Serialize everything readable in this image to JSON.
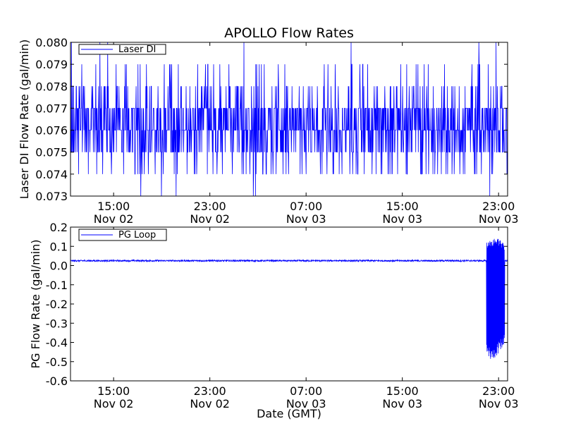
{
  "chart_data": [
    {
      "type": "line",
      "title": "APOLLO Flow Rates",
      "ylabel": "Laser DI Flow Rate (gal/min)",
      "ylim": [
        0.073,
        0.08
      ],
      "yticks": [
        "0.073",
        "0.074",
        "0.075",
        "0.076",
        "0.077",
        "0.078",
        "0.079",
        "0.080"
      ],
      "xticks": [
        {
          "time": "15:00",
          "date": "Nov 02"
        },
        {
          "time": "23:00",
          "date": "Nov 02"
        },
        {
          "time": "07:00",
          "date": "Nov 03"
        },
        {
          "time": "15:00",
          "date": "Nov 03"
        },
        {
          "time": "23:00",
          "date": "Nov 03"
        }
      ],
      "xlim": [
        "2011-11-02 11:25",
        "2011-11-03 23:45"
      ],
      "legend": {
        "position": "top-left"
      },
      "series": [
        {
          "name": "Laser DI",
          "color": "#0000ff",
          "typical_range": [
            0.075,
            0.077
          ],
          "baseline": 0.076,
          "noise_levels": [
            0.073,
            0.074,
            0.075,
            0.076,
            0.077,
            0.078,
            0.079,
            0.08
          ]
        }
      ]
    },
    {
      "type": "line",
      "title": "",
      "ylabel": "PG Flow Rate (gal/min)",
      "xlabel": "Date (GMT)",
      "ylim": [
        -0.6,
        0.2
      ],
      "yticks": [
        "-0.6",
        "-0.5",
        "-0.4",
        "-0.3",
        "-0.2",
        "-0.1",
        "0.0",
        "0.1",
        "0.2"
      ],
      "xticks": [
        {
          "time": "15:00",
          "date": "Nov 02"
        },
        {
          "time": "23:00",
          "date": "Nov 02"
        },
        {
          "time": "07:00",
          "date": "Nov 03"
        },
        {
          "time": "15:00",
          "date": "Nov 03"
        },
        {
          "time": "23:00",
          "date": "Nov 03"
        }
      ],
      "xlim": [
        "2011-11-02 11:25",
        "2011-11-03 23:45"
      ],
      "legend": {
        "position": "top-left"
      },
      "series": [
        {
          "name": "PG Loop",
          "color": "#0000ff",
          "baseline": 0.025,
          "oscillation_start": "2011-11-03 22:00",
          "oscillation_end": "2011-11-03 23:30",
          "oscillation_range": [
            -0.5,
            0.15
          ]
        }
      ]
    }
  ]
}
